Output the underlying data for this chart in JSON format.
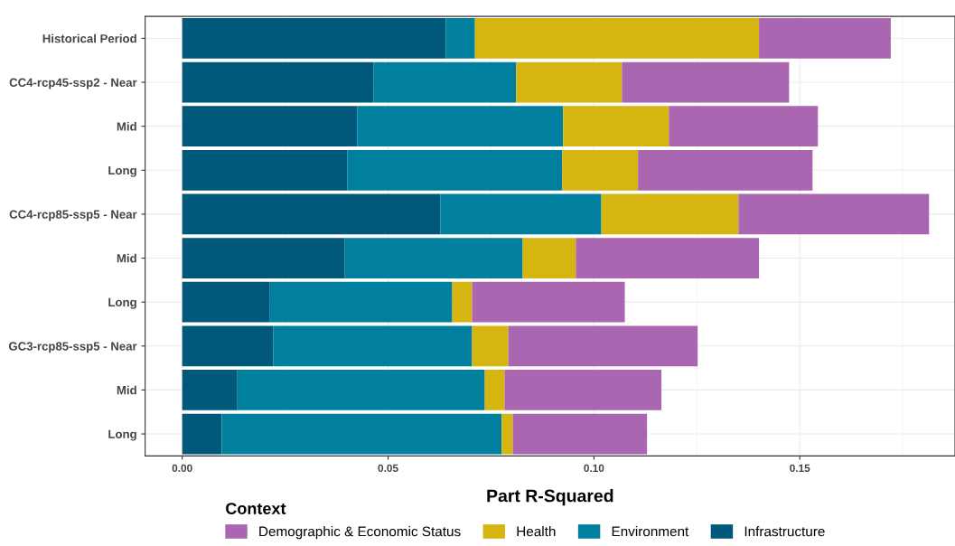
{
  "chart_data": {
    "type": "bar",
    "orientation": "horizontal",
    "stacked": true,
    "xlabel": "Part R-Squared",
    "legend_title": "Context",
    "legend": "bottom",
    "grid": true,
    "categories": [
      "Historical Period",
      "CC4-rcp45-ssp2 - Near",
      "Mid",
      "Long",
      "CC4-rcp85-ssp5 - Near",
      "Mid",
      "Long",
      "GC3-rcp85-ssp5 - Near",
      "Mid",
      "Long"
    ],
    "xlim": [
      -0.009,
      0.1877
    ],
    "xticks": [
      {
        "value": 0,
        "label": "0.00"
      },
      {
        "value": 0.05,
        "label": "0.05"
      },
      {
        "value": 0.1,
        "label": "0.10"
      },
      {
        "value": 0.15,
        "label": "0.15"
      }
    ],
    "series": [
      {
        "name": "Infrastructure",
        "color": "#00587a",
        "values": [
          0.064,
          0.0465,
          0.0425,
          0.0401,
          0.0627,
          0.0395,
          0.0213,
          0.0221,
          0.0134,
          0.0096
        ]
      },
      {
        "name": "Environment",
        "color": "#007f9f",
        "values": [
          0.0071,
          0.0346,
          0.05,
          0.0522,
          0.0391,
          0.0432,
          0.0443,
          0.0483,
          0.0601,
          0.068
        ]
      },
      {
        "name": "Health",
        "color": "#d6b511",
        "values": [
          0.069,
          0.0257,
          0.0257,
          0.0184,
          0.0333,
          0.0129,
          0.0048,
          0.0088,
          0.0048,
          0.0027
        ]
      },
      {
        "name": "Demographic & Economic Status",
        "color": "#aa66b0",
        "values": [
          0.032,
          0.0406,
          0.0362,
          0.0424,
          0.0463,
          0.0445,
          0.0371,
          0.046,
          0.0381,
          0.0326
        ]
      }
    ]
  }
}
